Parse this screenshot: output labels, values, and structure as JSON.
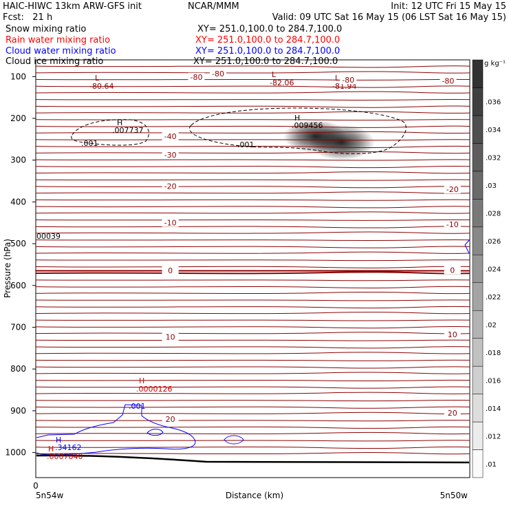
{
  "header": {
    "left_title": "HAIC-HIWC 13km ARW-GFS init",
    "center_title": "NCAR/MMM",
    "init": "Init: 12 UTC Fri 15 May 15",
    "fcst": "Fcst:   21 h",
    "valid": "Valid: 09 UTC Sat 16 May 15 (06 LST Sat 16 May 15)"
  },
  "legend": [
    {
      "label": "Snow mixing ratio",
      "xy": "XY= 251.0,100.0 to 284.7,100.0",
      "color": "#000000"
    },
    {
      "label": "Rain water mixing ratio",
      "xy": "XY= 251.0,100.0 to 284.7,100.0",
      "color": "#ff0000"
    },
    {
      "label": "Cloud water mixing ratio",
      "xy": "XY= 251.0,100.0 to 284.7,100.0",
      "color": "#0000ff"
    },
    {
      "label": "Cloud ice mixing ratio",
      "xy": "XY= 251.0,100.0 to 284.7,100.0",
      "color": "#000000"
    }
  ],
  "colors": {
    "temperature": "#8b0000",
    "snow": "#000000",
    "rain": "#cc0000",
    "cloud_water": "#0000ff",
    "terrain": "#000000"
  },
  "chart_data": {
    "type": "contour",
    "xlabel": "Distance (km)",
    "ylabel": "Pressure (hPa)",
    "x_ticks": [
      "0"
    ],
    "x_end_labels": {
      "left": "5n54w",
      "right": "5n50w"
    },
    "y_ticks": [
      100,
      200,
      300,
      400,
      500,
      600,
      700,
      800,
      900,
      1000
    ],
    "ylim": [
      1060,
      60
    ],
    "temperature_contour_labels": [
      {
        "value": "-80",
        "p": 93,
        "x": 0.42
      },
      {
        "value": "-80",
        "p": 101,
        "x": 0.37
      },
      {
        "value": "-80",
        "p": 108,
        "x": 0.72
      },
      {
        "value": "-80",
        "p": 110,
        "x": 0.95
      },
      {
        "value": "-40",
        "p": 243,
        "x": 0.31
      },
      {
        "value": "-30",
        "p": 287,
        "x": 0.31
      },
      {
        "value": "-20",
        "p": 362,
        "x": 0.31
      },
      {
        "value": "-20",
        "p": 370,
        "x": 0.96
      },
      {
        "value": "-10",
        "p": 450,
        "x": 0.31
      },
      {
        "value": "-10",
        "p": 454,
        "x": 0.96
      },
      {
        "value": "0",
        "p": 564,
        "x": 0.31
      },
      {
        "value": "0",
        "p": 563,
        "x": 0.96
      },
      {
        "value": "10",
        "p": 723,
        "x": 0.31
      },
      {
        "value": "10",
        "p": 717,
        "x": 0.96
      },
      {
        "value": "20",
        "p": 920,
        "x": 0.31
      },
      {
        "value": "20",
        "p": 905,
        "x": 0.96
      }
    ],
    "extrema_labels": [
      {
        "kind": "L",
        "value": "-80.64",
        "color": "temperature"
      },
      {
        "kind": "L",
        "value": "-82.06",
        "color": "temperature"
      },
      {
        "kind": "L",
        "value": "-81.94",
        "color": "temperature"
      },
      {
        "kind": "H",
        "value": ".007737",
        "color": "snow"
      },
      {
        "kind": "H",
        "value": ".009456",
        "color": "snow"
      },
      {
        "kind": "H",
        "value": ".0000126",
        "color": "rain"
      },
      {
        "kind": "H",
        "value": ".0007840",
        "color": "rain"
      },
      {
        "kind": "H",
        "value": ".34162",
        "color": "cloud_water"
      }
    ],
    "contour_labels": [
      {
        "value": ".001",
        "color": "snow"
      },
      {
        "value": ".001",
        "color": "snow"
      },
      {
        "value": ".001",
        "color": "cloud_water"
      },
      {
        "value": "00039",
        "color": "snow"
      }
    ],
    "colorbar": {
      "unit": "g kg⁻¹",
      "ticks": [
        ".01",
        ".012",
        ".014",
        ".016",
        ".018",
        ".02",
        ".022",
        ".024",
        ".026",
        ".028",
        ".03",
        ".032",
        ".034",
        ".036"
      ]
    }
  }
}
